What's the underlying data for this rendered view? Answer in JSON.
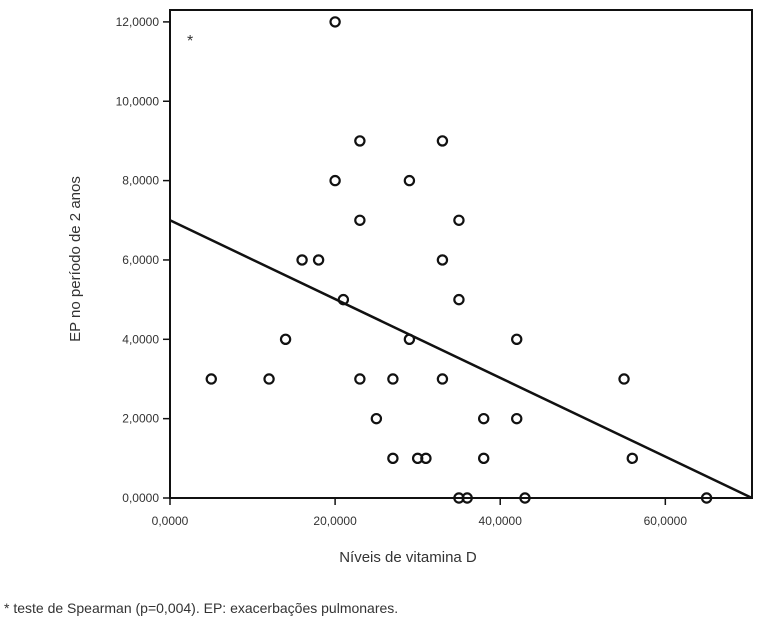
{
  "chart_data": {
    "type": "scatter",
    "title": "",
    "xlabel": "Níveis de vitamina D",
    "ylabel": "EP no período de 2 anos",
    "xlim": [
      0,
      70.5
    ],
    "ylim": [
      0,
      12.3
    ],
    "x_ticks": [
      {
        "value": 0,
        "label": "0,0000"
      },
      {
        "value": 20,
        "label": "20,0000"
      },
      {
        "value": 40,
        "label": "40,0000"
      },
      {
        "value": 60,
        "label": "60,0000"
      }
    ],
    "y_ticks": [
      {
        "value": 0,
        "label": "0,0000"
      },
      {
        "value": 2,
        "label": "2,0000"
      },
      {
        "value": 4,
        "label": "4,0000"
      },
      {
        "value": 6,
        "label": "6,0000"
      },
      {
        "value": 8,
        "label": "8,0000"
      },
      {
        "value": 10,
        "label": "10,0000"
      },
      {
        "value": 12,
        "label": "12,0000"
      }
    ],
    "points": [
      {
        "x": 20,
        "y": 12
      },
      {
        "x": 23,
        "y": 9
      },
      {
        "x": 33,
        "y": 9
      },
      {
        "x": 20,
        "y": 8
      },
      {
        "x": 29,
        "y": 8
      },
      {
        "x": 23,
        "y": 7
      },
      {
        "x": 35,
        "y": 7
      },
      {
        "x": 16,
        "y": 6
      },
      {
        "x": 18,
        "y": 6
      },
      {
        "x": 33,
        "y": 6
      },
      {
        "x": 21,
        "y": 5
      },
      {
        "x": 35,
        "y": 5
      },
      {
        "x": 14,
        "y": 4
      },
      {
        "x": 29,
        "y": 4
      },
      {
        "x": 42,
        "y": 4
      },
      {
        "x": 5,
        "y": 3
      },
      {
        "x": 12,
        "y": 3
      },
      {
        "x": 23,
        "y": 3
      },
      {
        "x": 27,
        "y": 3
      },
      {
        "x": 33,
        "y": 3
      },
      {
        "x": 55,
        "y": 3
      },
      {
        "x": 25,
        "y": 2
      },
      {
        "x": 38,
        "y": 2
      },
      {
        "x": 42,
        "y": 2
      },
      {
        "x": 27,
        "y": 1
      },
      {
        "x": 30,
        "y": 1
      },
      {
        "x": 31,
        "y": 1
      },
      {
        "x": 38,
        "y": 1
      },
      {
        "x": 56,
        "y": 1
      },
      {
        "x": 35,
        "y": 0
      },
      {
        "x": 36,
        "y": 0
      },
      {
        "x": 43,
        "y": 0
      },
      {
        "x": 65,
        "y": 0
      }
    ],
    "fit_line": {
      "x1": 0,
      "y1": 7.0,
      "x2": 70.5,
      "y2": 0
    },
    "annotation": "*",
    "grid": false,
    "legend": "none"
  },
  "footnote": "* teste de Spearman (p=0,004). EP: exacerbações pulmonares.",
  "colors": {
    "ink": "#111111",
    "text": "#333333"
  }
}
